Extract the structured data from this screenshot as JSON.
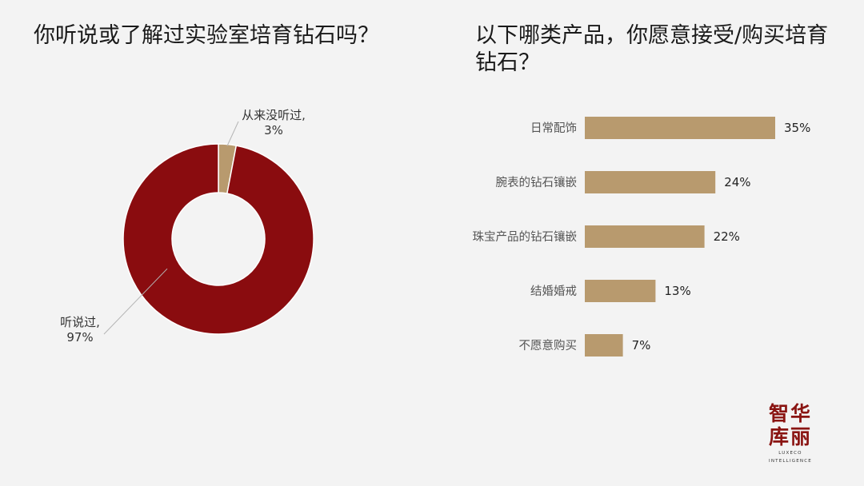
{
  "left_title": "你听说或了解过实验室培育钻石吗？",
  "right_title": "以下哪类产品，你愿意接受/购买培育钻石？",
  "colors": {
    "donut_main": "#8a0c0f",
    "donut_minor": "#b89a6e",
    "bar": "#b89a6e",
    "background": "#f3f3f3",
    "leader_line": "#b5b5b5"
  },
  "logo": {
    "glyphs_row1": "智华",
    "glyphs_row2": "库丽",
    "sub_row1": "LUXECO",
    "sub_row2": "INTELLIGENCE"
  },
  "chart_data": [
    {
      "type": "pie",
      "title": "你听说或了解过实验室培育钻石吗？",
      "donut": true,
      "slices": [
        {
          "label": "从来没听过,",
          "value": 3,
          "value_label": "3%"
        },
        {
          "label": "听说过,",
          "value": 97,
          "value_label": "97%"
        }
      ]
    },
    {
      "type": "bar",
      "orientation": "horizontal",
      "title": "以下哪类产品，你愿意接受/购买培育钻石？",
      "categories": [
        "日常配饰",
        "腕表的钻石镶嵌",
        "珠宝产品的钻石镶嵌",
        "结婚婚戒",
        "不愿意购买"
      ],
      "values": [
        35,
        24,
        22,
        13,
        7
      ],
      "value_labels": [
        "35%",
        "24%",
        "22%",
        "13%",
        "7%"
      ],
      "unit": "%",
      "xlim": [
        0,
        35
      ],
      "grid": false,
      "legend": "none"
    }
  ]
}
